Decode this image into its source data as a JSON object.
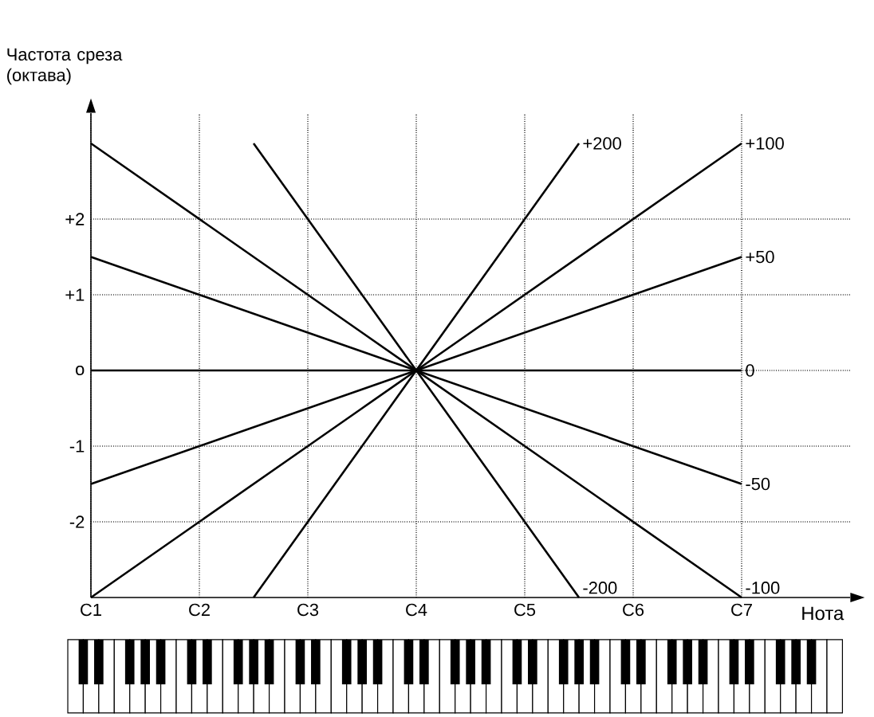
{
  "chart_data": {
    "type": "line",
    "xlabel": "Нота",
    "ylabel": "Частота среза (октава)",
    "categories": [
      "C1",
      null,
      "C2",
      null,
      "C3",
      null,
      "C4",
      null,
      "C5",
      null,
      "C6",
      null,
      "C7"
    ],
    "ylim": [
      -3,
      3.4
    ],
    "yticks": [
      {
        "value": -2,
        "label": "-2"
      },
      {
        "value": -1,
        "label": "-1"
      },
      {
        "value": 0,
        "label": "o"
      },
      {
        "value": 1,
        "label": "+1"
      },
      {
        "value": 2,
        "label": "+2"
      }
    ],
    "grid": true,
    "line_style": "solid",
    "series": [
      {
        "name": "+200",
        "color": "#000000",
        "values": [
          null,
          null,
          null,
          -3,
          -2,
          -1,
          0,
          1,
          2,
          3,
          null,
          null,
          null
        ]
      },
      {
        "name": "+100",
        "color": "#000000",
        "values": [
          -3,
          -2.5,
          -2,
          -1.5,
          -1,
          -0.5,
          0,
          0.5,
          1,
          1.5,
          2,
          2.5,
          3
        ]
      },
      {
        "name": "+50",
        "color": "#000000",
        "values": [
          -1.5,
          -1.25,
          -1,
          -0.75,
          -0.5,
          -0.25,
          0,
          0.25,
          0.5,
          0.75,
          1,
          1.25,
          1.5
        ]
      },
      {
        "name": "0",
        "color": "#000000",
        "values": [
          0,
          0,
          0,
          0,
          0,
          0,
          0,
          0,
          0,
          0,
          0,
          0,
          0
        ]
      },
      {
        "name": "-50",
        "color": "#000000",
        "values": [
          1.5,
          1.25,
          1,
          0.75,
          0.5,
          0.25,
          0,
          -0.25,
          -0.5,
          -0.75,
          -1,
          -1.25,
          -1.5
        ]
      },
      {
        "name": "-100",
        "color": "#000000",
        "values": [
          3,
          2.5,
          2,
          1.5,
          1,
          0.5,
          0,
          -0.5,
          -1,
          -1.5,
          -2,
          -2.5,
          -3
        ]
      },
      {
        "name": "-200",
        "color": "#000000",
        "values": [
          null,
          null,
          null,
          3,
          2,
          1,
          0,
          -1,
          -2,
          -3,
          null,
          null,
          null
        ]
      }
    ]
  }
}
